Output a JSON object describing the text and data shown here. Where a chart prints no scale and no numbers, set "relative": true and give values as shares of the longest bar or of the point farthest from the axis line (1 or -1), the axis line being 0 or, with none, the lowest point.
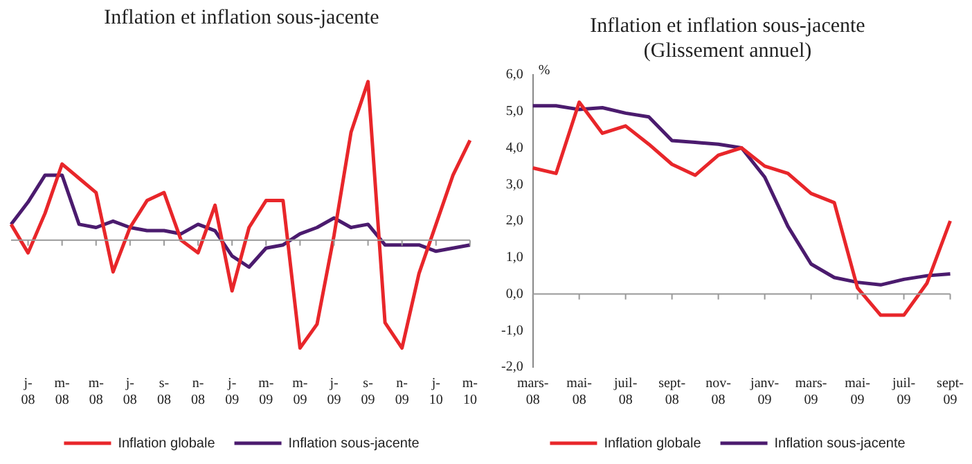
{
  "chart_data": [
    {
      "type": "line",
      "title": "Inflation et inflation sous-jacente",
      "relative": true,
      "grid": false,
      "marker": "none",
      "legend": "bottom",
      "categories": [
        null,
        "j-08",
        null,
        "m-08",
        null,
        "m-08",
        null,
        "j-08",
        null,
        "s-08",
        null,
        "n-08",
        null,
        "j-09",
        null,
        "m-09",
        null,
        "m-09",
        null,
        "j-09",
        null,
        "s-09",
        null,
        "n-09",
        null,
        "j-10",
        null,
        "m-10"
      ],
      "series": [
        {
          "name": "Inflation globale",
          "color": "#e8262a",
          "values": [
            0.1,
            -0.08,
            0.17,
            0.48,
            0.39,
            0.3,
            -0.2,
            0.08,
            0.25,
            0.3,
            0.0,
            -0.08,
            0.22,
            -0.32,
            0.08,
            0.25,
            0.25,
            -0.68,
            -0.53,
            0.03,
            0.68,
            1.0,
            -0.52,
            -0.68,
            -0.21,
            0.1,
            0.41,
            0.63
          ]
        },
        {
          "name": "Inflation sous-jacente",
          "color": "#4b1b6e",
          "values": [
            0.1,
            0.24,
            0.41,
            0.41,
            0.1,
            0.08,
            0.12,
            0.08,
            0.06,
            0.06,
            0.04,
            0.1,
            0.06,
            -0.1,
            -0.17,
            -0.05,
            -0.03,
            0.04,
            0.08,
            0.14,
            0.08,
            0.1,
            -0.03,
            -0.03,
            -0.03,
            -0.07,
            -0.05,
            -0.03
          ]
        }
      ]
    },
    {
      "type": "line",
      "title": "Inflation et inflation sous-jacente",
      "subtitle": "(Glissement annuel)",
      "ylabel": "%",
      "grid": false,
      "marker": "none",
      "legend": "bottom",
      "categories": [
        "mars-08",
        null,
        "mai-08",
        null,
        "juil-08",
        null,
        "sept-08",
        null,
        "nov-08",
        null,
        "janv-09",
        null,
        "mars-09",
        null,
        "mai-09",
        null,
        "juil-09",
        null,
        "sept-09"
      ],
      "ylim": [
        -2,
        6
      ],
      "ref_lines": [
        {
          "axis": "y",
          "value": 0,
          "color": "#999999"
        }
      ],
      "yticks": [
        {
          "value": -2,
          "label": "-2,0"
        },
        {
          "value": -1,
          "label": "-1,0"
        },
        {
          "value": 0,
          "label": "0,0"
        },
        {
          "value": 1,
          "label": "1,0"
        },
        {
          "value": 2,
          "label": "2,0"
        },
        {
          "value": 3,
          "label": "3,0"
        },
        {
          "value": 4,
          "label": "4,0"
        },
        {
          "value": 5,
          "label": "5,0"
        },
        {
          "value": 6,
          "label": "6,0"
        }
      ],
      "series": [
        {
          "name": "Inflation globale",
          "color": "#e8262a",
          "values": [
            3.45,
            3.3,
            5.25,
            4.4,
            4.6,
            4.1,
            3.55,
            3.25,
            3.8,
            4.0,
            3.5,
            3.3,
            2.75,
            2.5,
            0.17,
            -0.58,
            -0.58,
            0.3,
            2.0
          ]
        },
        {
          "name": "Inflation sous-jacente",
          "color": "#4b1b6e",
          "values": [
            5.15,
            5.15,
            5.05,
            5.1,
            4.95,
            4.85,
            4.2,
            4.15,
            4.1,
            4.0,
            3.2,
            1.85,
            0.82,
            0.45,
            0.32,
            0.25,
            0.4,
            0.5,
            0.55
          ]
        }
      ]
    }
  ]
}
